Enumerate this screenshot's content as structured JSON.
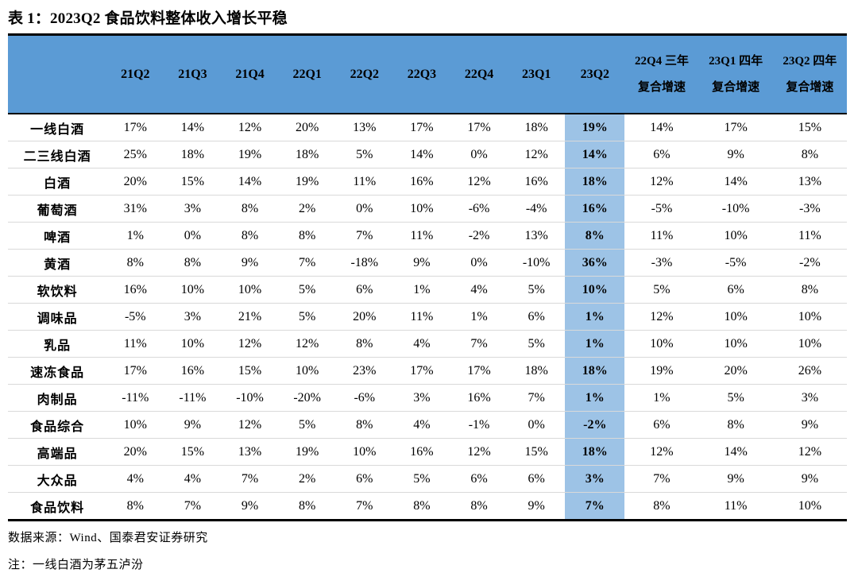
{
  "title": "表 1：2023Q2 食品饮料整体收入增长平稳",
  "colors": {
    "header_bg": "#5B9BD5",
    "highlight_bg": "#9DC3E6",
    "rule": "#000000",
    "row_separator": "#D9D9D9"
  },
  "main": {
    "table": {
      "columns": [
        "21Q2",
        "21Q3",
        "21Q4",
        "22Q1",
        "22Q2",
        "22Q3",
        "22Q4",
        "23Q1",
        "23Q2",
        "22Q4 三年复合增速",
        "23Q1 四年复合增速",
        "23Q2 四年复合增速"
      ],
      "highlight_column": "23Q2",
      "rows": [
        {
          "label": "一线白酒",
          "values": [
            "17%",
            "14%",
            "12%",
            "20%",
            "13%",
            "17%",
            "17%",
            "18%",
            "19%",
            "14%",
            "17%",
            "15%"
          ]
        },
        {
          "label": "二三线白酒",
          "values": [
            "25%",
            "18%",
            "19%",
            "18%",
            "5%",
            "14%",
            "0%",
            "12%",
            "14%",
            "6%",
            "9%",
            "8%"
          ]
        },
        {
          "label": "白酒",
          "values": [
            "20%",
            "15%",
            "14%",
            "19%",
            "11%",
            "16%",
            "12%",
            "16%",
            "18%",
            "12%",
            "14%",
            "13%"
          ]
        },
        {
          "label": "葡萄酒",
          "values": [
            "31%",
            "3%",
            "8%",
            "2%",
            "0%",
            "10%",
            "-6%",
            "-4%",
            "16%",
            "-5%",
            "-10%",
            "-3%"
          ]
        },
        {
          "label": "啤酒",
          "values": [
            "1%",
            "0%",
            "8%",
            "8%",
            "7%",
            "11%",
            "-2%",
            "13%",
            "8%",
            "11%",
            "10%",
            "11%"
          ]
        },
        {
          "label": "黄酒",
          "values": [
            "8%",
            "8%",
            "9%",
            "7%",
            "-18%",
            "9%",
            "0%",
            "-10%",
            "36%",
            "-3%",
            "-5%",
            "-2%"
          ]
        },
        {
          "label": "软饮料",
          "values": [
            "16%",
            "10%",
            "10%",
            "5%",
            "6%",
            "1%",
            "4%",
            "5%",
            "10%",
            "5%",
            "6%",
            "8%"
          ]
        },
        {
          "label": "调味品",
          "values": [
            "-5%",
            "3%",
            "21%",
            "5%",
            "20%",
            "11%",
            "1%",
            "6%",
            "1%",
            "12%",
            "10%",
            "10%"
          ]
        },
        {
          "label": "乳品",
          "values": [
            "11%",
            "10%",
            "12%",
            "12%",
            "8%",
            "4%",
            "7%",
            "5%",
            "1%",
            "10%",
            "10%",
            "10%"
          ]
        },
        {
          "label": "速冻食品",
          "values": [
            "17%",
            "16%",
            "15%",
            "10%",
            "23%",
            "17%",
            "17%",
            "18%",
            "18%",
            "19%",
            "20%",
            "26%"
          ]
        },
        {
          "label": "肉制品",
          "values": [
            "-11%",
            "-11%",
            "-10%",
            "-20%",
            "-6%",
            "3%",
            "16%",
            "7%",
            "1%",
            "1%",
            "5%",
            "3%"
          ]
        },
        {
          "label": "食品综合",
          "values": [
            "10%",
            "9%",
            "12%",
            "5%",
            "8%",
            "4%",
            "-1%",
            "0%",
            "-2%",
            "6%",
            "8%",
            "9%"
          ]
        },
        {
          "label": "高端品",
          "values": [
            "20%",
            "15%",
            "13%",
            "19%",
            "10%",
            "16%",
            "12%",
            "15%",
            "18%",
            "12%",
            "14%",
            "12%"
          ]
        },
        {
          "label": "大众品",
          "values": [
            "4%",
            "4%",
            "7%",
            "2%",
            "6%",
            "5%",
            "6%",
            "6%",
            "3%",
            "7%",
            "9%",
            "9%"
          ]
        },
        {
          "label": "食品饮料",
          "values": [
            "8%",
            "7%",
            "9%",
            "8%",
            "7%",
            "8%",
            "8%",
            "9%",
            "7%",
            "8%",
            "11%",
            "10%"
          ]
        }
      ]
    }
  },
  "footer": {
    "source": "数据来源：Wind、国泰君安证券研究",
    "note": "注：一线白酒为茅五泸汾"
  }
}
